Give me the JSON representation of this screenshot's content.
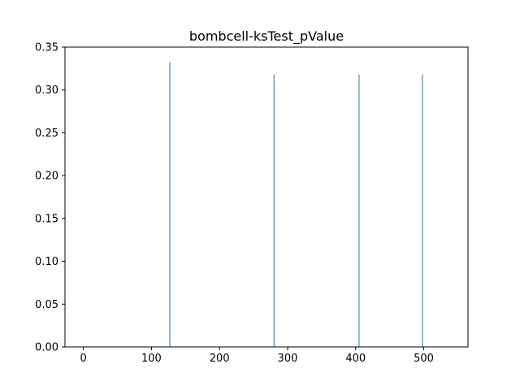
{
  "chart_data": {
    "type": "bar",
    "title": "bombcell-ksTest_pValue",
    "xlabel": "",
    "ylabel": "",
    "xlim": [
      -27,
      565
    ],
    "ylim": [
      0,
      0.35
    ],
    "xticks": [
      0,
      100,
      200,
      300,
      400,
      500
    ],
    "xtick_labels": [
      "0",
      "100",
      "200",
      "300",
      "400",
      "500"
    ],
    "yticks": [
      0.0,
      0.05,
      0.1,
      0.15,
      0.2,
      0.25,
      0.3,
      0.35
    ],
    "ytick_labels": [
      "0.00",
      "0.05",
      "0.10",
      "0.15",
      "0.20",
      "0.25",
      "0.30",
      "0.35"
    ],
    "grid": false,
    "bar_color": "#1f77b4",
    "bars": [
      {
        "x": 127,
        "value": 0.333
      },
      {
        "x": 280,
        "value": 0.318
      },
      {
        "x": 405,
        "value": 0.318
      },
      {
        "x": 498,
        "value": 0.318
      }
    ]
  }
}
